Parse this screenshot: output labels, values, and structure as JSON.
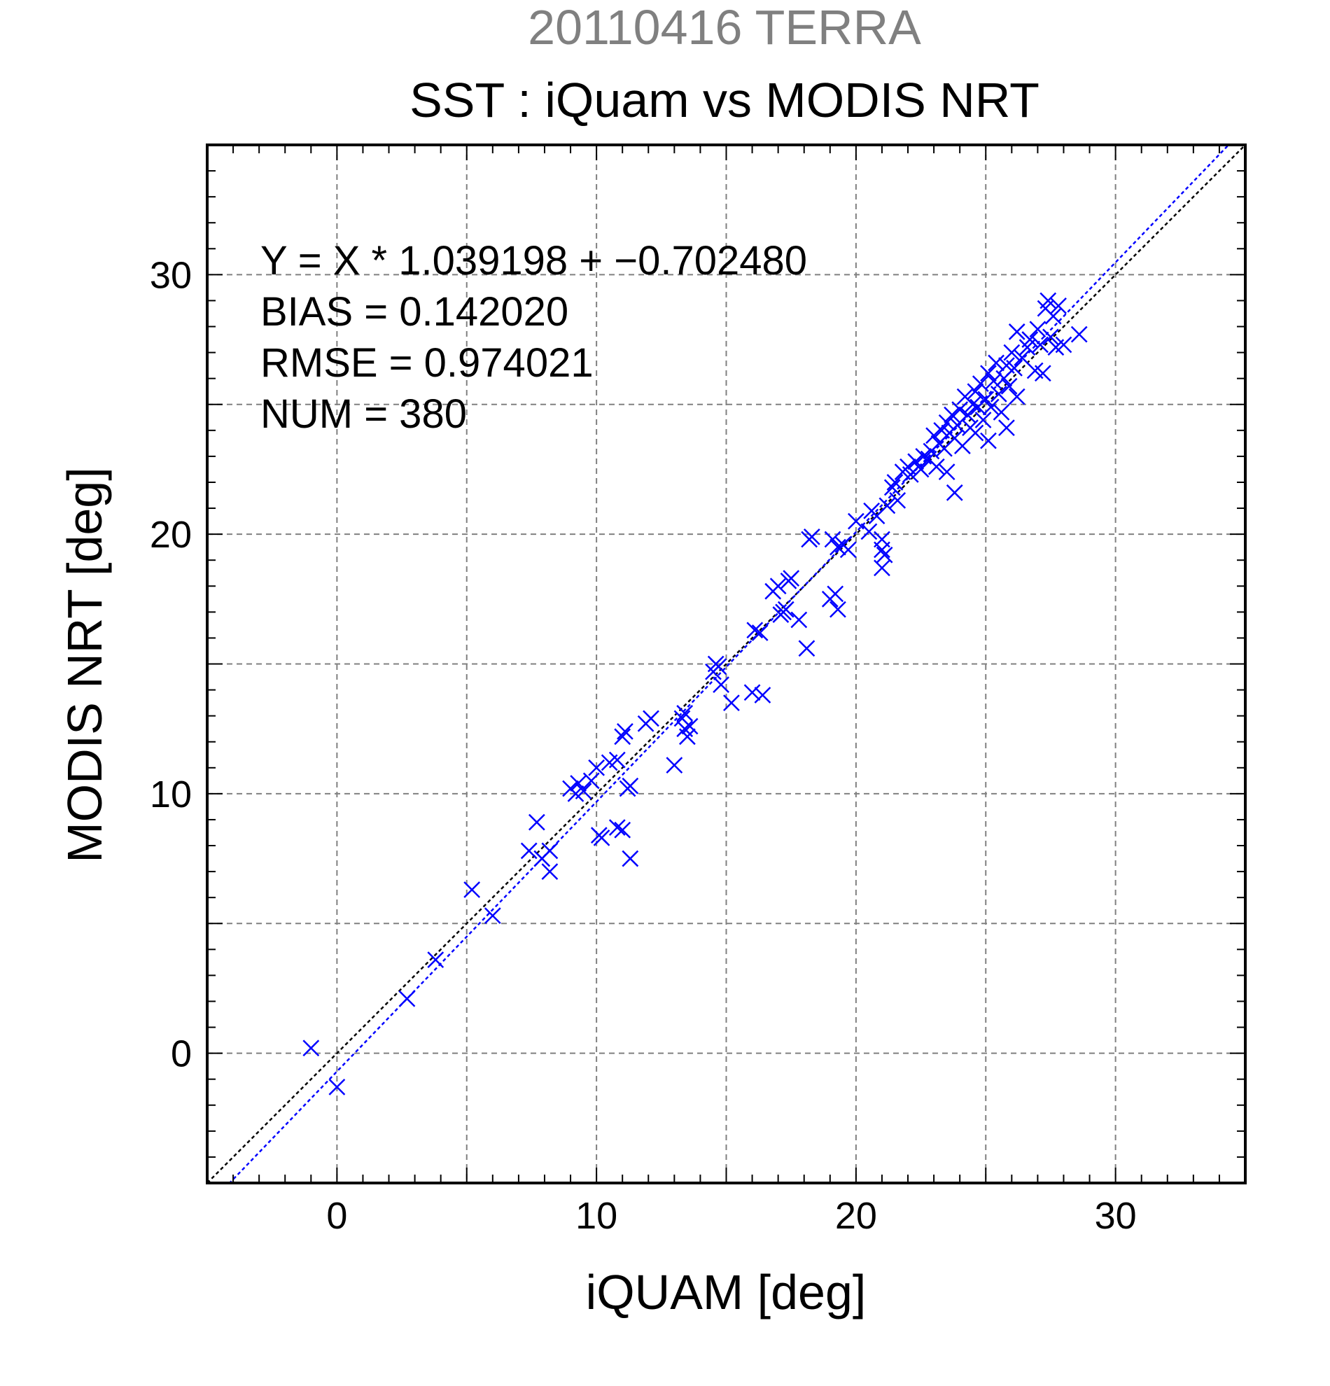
{
  "chart_data": {
    "type": "scatter",
    "supertitle": "20110416 TERRA",
    "title": "SST : iQuam vs MODIS NRT",
    "xlabel": "iQUAM [deg]",
    "ylabel": "MODIS NRT [deg]",
    "xlim": [
      -5,
      35
    ],
    "ylim": [
      -5,
      35
    ],
    "xticks": [
      0,
      10,
      20,
      30
    ],
    "yticks": [
      0,
      10,
      20,
      30
    ],
    "grid": true,
    "colors": {
      "supertitle": "#808080",
      "points": "#0000ff",
      "fit_line": "#0000ff",
      "identity_line": "#000000",
      "grid": "#808080",
      "axes": "#000000"
    },
    "annotations": [
      "Y = X * 1.039198 + −0.702480",
      "BIAS = 0.142020",
      "RMSE = 0.974021",
      "NUM = 380"
    ],
    "fit": {
      "slope": 1.039198,
      "intercept": -0.70248
    },
    "marker": "x",
    "points": [
      [
        -1.0,
        0.2
      ],
      [
        0.0,
        -1.3
      ],
      [
        2.7,
        2.1
      ],
      [
        3.8,
        3.6
      ],
      [
        5.2,
        6.3
      ],
      [
        6.0,
        5.3
      ],
      [
        7.4,
        7.8
      ],
      [
        7.7,
        8.9
      ],
      [
        7.9,
        7.5
      ],
      [
        8.2,
        7.0
      ],
      [
        8.2,
        7.8
      ],
      [
        9.0,
        10.2
      ],
      [
        9.2,
        10.0
      ],
      [
        9.3,
        10.4
      ],
      [
        9.5,
        10.1
      ],
      [
        9.8,
        10.5
      ],
      [
        10.0,
        11.0
      ],
      [
        10.1,
        8.4
      ],
      [
        10.2,
        8.3
      ],
      [
        10.5,
        11.2
      ],
      [
        10.8,
        11.3
      ],
      [
        10.8,
        8.7
      ],
      [
        11.0,
        8.6
      ],
      [
        11.0,
        12.2
      ],
      [
        11.1,
        12.4
      ],
      [
        11.2,
        10.2
      ],
      [
        11.3,
        7.5
      ],
      [
        11.3,
        10.3
      ],
      [
        11.9,
        12.7
      ],
      [
        12.1,
        12.9
      ],
      [
        13.0,
        11.1
      ],
      [
        13.3,
        12.9
      ],
      [
        13.4,
        13.1
      ],
      [
        13.4,
        12.5
      ],
      [
        13.5,
        12.2
      ],
      [
        13.6,
        12.6
      ],
      [
        14.5,
        14.7
      ],
      [
        14.6,
        15.0
      ],
      [
        14.7,
        14.9
      ],
      [
        14.8,
        14.2
      ],
      [
        15.2,
        13.5
      ],
      [
        16.0,
        13.9
      ],
      [
        16.1,
        16.3
      ],
      [
        16.3,
        16.2
      ],
      [
        16.4,
        13.8
      ],
      [
        16.8,
        17.8
      ],
      [
        17.0,
        18.0
      ],
      [
        17.1,
        16.9
      ],
      [
        17.2,
        17.0
      ],
      [
        17.3,
        17.1
      ],
      [
        17.4,
        18.2
      ],
      [
        17.5,
        18.3
      ],
      [
        17.8,
        16.7
      ],
      [
        18.1,
        15.6
      ],
      [
        18.2,
        19.8
      ],
      [
        18.3,
        19.9
      ],
      [
        19.0,
        17.5
      ],
      [
        19.1,
        19.8
      ],
      [
        19.2,
        17.7
      ],
      [
        19.3,
        17.1
      ],
      [
        19.3,
        19.5
      ],
      [
        19.5,
        19.6
      ],
      [
        19.7,
        19.4
      ],
      [
        20.0,
        20.5
      ],
      [
        20.5,
        20.1
      ],
      [
        20.6,
        20.9
      ],
      [
        20.8,
        20.7
      ],
      [
        21.0,
        19.8
      ],
      [
        21.0,
        19.4
      ],
      [
        21.0,
        18.7
      ],
      [
        21.1,
        19.2
      ],
      [
        21.2,
        21.1
      ],
      [
        21.4,
        21.8
      ],
      [
        21.5,
        22.0
      ],
      [
        21.6,
        21.3
      ],
      [
        21.8,
        22.4
      ],
      [
        22.0,
        22.6
      ],
      [
        22.1,
        22.3
      ],
      [
        22.3,
        22.8
      ],
      [
        22.5,
        22.5
      ],
      [
        22.6,
        23.0
      ],
      [
        22.8,
        22.9
      ],
      [
        22.9,
        23.2
      ],
      [
        23.0,
        23.8
      ],
      [
        23.1,
        22.6
      ],
      [
        23.2,
        23.5
      ],
      [
        23.3,
        24.0
      ],
      [
        23.4,
        23.3
      ],
      [
        23.5,
        22.4
      ],
      [
        23.5,
        24.3
      ],
      [
        23.6,
        23.9
      ],
      [
        23.7,
        24.6
      ],
      [
        23.8,
        21.6
      ],
      [
        23.8,
        23.7
      ],
      [
        23.9,
        24.2
      ],
      [
        24.0,
        24.8
      ],
      [
        24.1,
        23.4
      ],
      [
        24.2,
        25.3
      ],
      [
        24.3,
        24.6
      ],
      [
        24.4,
        24.1
      ],
      [
        24.5,
        25.0
      ],
      [
        24.6,
        25.5
      ],
      [
        24.6,
        23.9
      ],
      [
        24.7,
        24.9
      ],
      [
        24.8,
        25.8
      ],
      [
        24.9,
        24.4
      ],
      [
        25.0,
        25.2
      ],
      [
        25.1,
        26.2
      ],
      [
        25.1,
        23.6
      ],
      [
        25.2,
        24.9
      ],
      [
        25.3,
        25.9
      ],
      [
        25.4,
        26.6
      ],
      [
        25.5,
        25.4
      ],
      [
        25.6,
        24.7
      ],
      [
        25.7,
        26.0
      ],
      [
        25.8,
        24.1
      ],
      [
        25.8,
        26.5
      ],
      [
        25.9,
        25.7
      ],
      [
        26.0,
        27.0
      ],
      [
        26.1,
        26.4
      ],
      [
        26.2,
        27.8
      ],
      [
        26.2,
        25.3
      ],
      [
        26.4,
        26.8
      ],
      [
        26.6,
        27.2
      ],
      [
        26.7,
        27.5
      ],
      [
        26.9,
        26.3
      ],
      [
        27.0,
        27.9
      ],
      [
        27.1,
        27.3
      ],
      [
        27.2,
        26.2
      ],
      [
        27.3,
        28.7
      ],
      [
        27.4,
        29.0
      ],
      [
        27.5,
        27.6
      ],
      [
        27.6,
        28.4
      ],
      [
        27.7,
        27.2
      ],
      [
        27.8,
        28.8
      ],
      [
        28.0,
        27.3
      ],
      [
        28.6,
        27.7
      ]
    ]
  }
}
